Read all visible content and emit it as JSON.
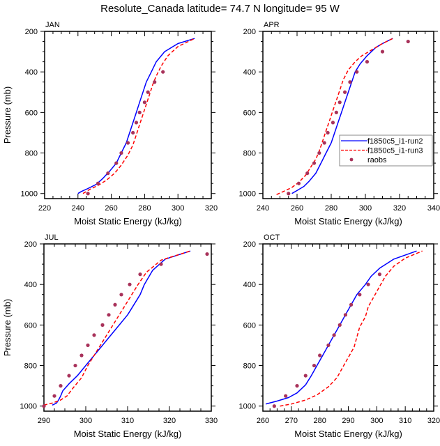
{
  "chart_data": {
    "type": "line",
    "title": "Resolute_Canada  latitude= 74.7 N longitude= 95 W",
    "legend": {
      "placement": "right-middle of APR panel",
      "entries": [
        {
          "name": "f1850c5_i1-run2",
          "style": "solid",
          "color": "#0000ff"
        },
        {
          "name": "f1850c5_i1-run3",
          "style": "dashed",
          "color": "#ff0000"
        },
        {
          "name": "raobs",
          "style": "marker",
          "color": "#a8325a"
        }
      ]
    },
    "panels": [
      {
        "label": "JAN",
        "xlabel": "Moist Static Energy (kJ/kg)",
        "ylabel": "Pressure (mb)",
        "xlim": [
          220,
          320
        ],
        "xticks": [
          220,
          240,
          260,
          280,
          300,
          320
        ],
        "ylim": [
          1025,
          200
        ],
        "yticks": [
          200,
          400,
          600,
          800,
          1000
        ],
        "show_ylabel": true,
        "show_legend": false,
        "series": [
          {
            "name": "f1850c5_i1-run2",
            "points": [
              [
                240,
                1000
              ],
              [
                242,
                990
              ],
              [
                246,
                975
              ],
              [
                251,
                955
              ],
              [
                255,
                925
              ],
              [
                259,
                890
              ],
              [
                263,
                850
              ],
              [
                266,
                800
              ],
              [
                269,
                750
              ],
              [
                271,
                700
              ],
              [
                273,
                650
              ],
              [
                275,
                600
              ],
              [
                277,
                550
              ],
              [
                279,
                500
              ],
              [
                281,
                450
              ],
              [
                284,
                400
              ],
              [
                287,
                350
              ],
              [
                292,
                300
              ],
              [
                300,
                260
              ],
              [
                310,
                235
              ]
            ]
          },
          {
            "name": "f1850c5_i1-run3",
            "points": [
              [
                243,
                1000
              ],
              [
                247,
                980
              ],
              [
                252,
                960
              ],
              [
                257,
                935
              ],
              [
                262,
                900
              ],
              [
                266,
                860
              ],
              [
                270,
                810
              ],
              [
                273,
                760
              ],
              [
                275,
                710
              ],
              [
                277,
                660
              ],
              [
                279,
                610
              ],
              [
                281,
                560
              ],
              [
                283,
                510
              ],
              [
                285,
                460
              ],
              [
                287,
                420
              ],
              [
                290,
                370
              ],
              [
                294,
                320
              ],
              [
                300,
                275
              ],
              [
                305,
                255
              ],
              [
                310,
                235
              ]
            ]
          },
          {
            "name": "raobs",
            "points": [
              [
                246,
                1000
              ],
              [
                252,
                950
              ],
              [
                258,
                900
              ],
              [
                263,
                850
              ],
              [
                266,
                800
              ],
              [
                270,
                750
              ],
              [
                273,
                700
              ],
              [
                275,
                650
              ],
              [
                277,
                600
              ],
              [
                280,
                550
              ],
              [
                282,
                500
              ],
              [
                286,
                450
              ],
              [
                291,
                400
              ]
            ]
          }
        ]
      },
      {
        "label": "APR",
        "xlabel": "Moist Static Energy (kJ/kg)",
        "ylabel": "",
        "xlim": [
          240,
          340
        ],
        "xticks": [
          240,
          260,
          280,
          300,
          320,
          340
        ],
        "ylim": [
          1025,
          200
        ],
        "yticks": [
          200,
          400,
          600,
          800,
          1000
        ],
        "show_ylabel": false,
        "show_legend": true,
        "series": [
          {
            "name": "f1850c5_i1-run2",
            "points": [
              [
                257,
                1000
              ],
              [
                260,
                985
              ],
              [
                264,
                965
              ],
              [
                267,
                940
              ],
              [
                271,
                900
              ],
              [
                274,
                850
              ],
              [
                277,
                800
              ],
              [
                280,
                750
              ],
              [
                282,
                700
              ],
              [
                284,
                650
              ],
              [
                286,
                600
              ],
              [
                288,
                550
              ],
              [
                290,
                500
              ],
              [
                292,
                450
              ],
              [
                294,
                400
              ],
              [
                297,
                360
              ],
              [
                301,
                320
              ],
              [
                306,
                280
              ],
              [
                310,
                260
              ],
              [
                316,
                235
              ]
            ]
          },
          {
            "name": "f1850c5_i1-run3",
            "points": [
              [
                248,
                1005
              ],
              [
                252,
                990
              ],
              [
                257,
                970
              ],
              [
                261,
                945
              ],
              [
                265,
                910
              ],
              [
                268,
                870
              ],
              [
                271,
                830
              ],
              [
                273,
                790
              ],
              [
                275,
                740
              ],
              [
                277,
                690
              ],
              [
                279,
                640
              ],
              [
                281,
                590
              ],
              [
                283,
                540
              ],
              [
                285,
                490
              ],
              [
                287,
                440
              ],
              [
                290,
                390
              ],
              [
                294,
                350
              ],
              [
                298,
                320
              ],
              [
                305,
                285
              ],
              [
                310,
                260
              ],
              [
                316,
                235
              ]
            ]
          },
          {
            "name": "raobs",
            "points": [
              [
                255,
                1000
              ],
              [
                261,
                950
              ],
              [
                266,
                900
              ],
              [
                270,
                850
              ],
              [
                273,
                800
              ],
              [
                276,
                750
              ],
              [
                278,
                700
              ],
              [
                281,
                650
              ],
              [
                283,
                600
              ],
              [
                285,
                550
              ],
              [
                288,
                500
              ],
              [
                291,
                450
              ],
              [
                295,
                400
              ],
              [
                301,
                350
              ],
              [
                310,
                300
              ],
              [
                325,
                250
              ]
            ]
          }
        ]
      },
      {
        "label": "JUL",
        "xlabel": "Moist Static Energy (kJ/kg)",
        "ylabel": "Pressure (mb)",
        "xlim": [
          290,
          330
        ],
        "xticks": [
          290,
          300,
          310,
          320,
          330
        ],
        "ylim": [
          1025,
          200
        ],
        "yticks": [
          200,
          400,
          600,
          800,
          1000
        ],
        "show_ylabel": true,
        "show_legend": false,
        "series": [
          {
            "name": "f1850c5_i1-run2",
            "points": [
              [
                292,
                995
              ],
              [
                293,
                985
              ],
              [
                293.5,
                970
              ],
              [
                294,
                950
              ],
              [
                294.5,
                925
              ],
              [
                296,
                890
              ],
              [
                298,
                850
              ],
              [
                300,
                800
              ],
              [
                302,
                750
              ],
              [
                304,
                700
              ],
              [
                306,
                650
              ],
              [
                308,
                600
              ],
              [
                310,
                550
              ],
              [
                311.5,
                500
              ],
              [
                313,
                450
              ],
              [
                314,
                400
              ],
              [
                316,
                330
              ],
              [
                319,
                275
              ],
              [
                325,
                235
              ]
            ]
          },
          {
            "name": "f1850c5_i1-run3",
            "points": [
              [
                290,
                995
              ],
              [
                292,
                985
              ],
              [
                294,
                970
              ],
              [
                295.5,
                950
              ],
              [
                297,
                910
              ],
              [
                299,
                860
              ],
              [
                300.5,
                800
              ],
              [
                302,
                750
              ],
              [
                303.5,
                700
              ],
              [
                305,
                650
              ],
              [
                306.5,
                600
              ],
              [
                308,
                550
              ],
              [
                309.5,
                500
              ],
              [
                311,
                450
              ],
              [
                312.5,
                400
              ],
              [
                314.5,
                340
              ],
              [
                318,
                280
              ],
              [
                325,
                235
              ]
            ]
          },
          {
            "name": "raobs",
            "points": [
              [
                290,
                1000
              ],
              [
                292.5,
                950
              ],
              [
                294,
                900
              ],
              [
                296,
                850
              ],
              [
                297.5,
                800
              ],
              [
                299,
                750
              ],
              [
                300.5,
                700
              ],
              [
                302,
                650
              ],
              [
                304,
                600
              ],
              [
                305.5,
                550
              ],
              [
                307,
                500
              ],
              [
                308.5,
                450
              ],
              [
                310.5,
                400
              ],
              [
                313,
                350
              ],
              [
                318,
                300
              ],
              [
                329,
                250
              ]
            ]
          }
        ]
      },
      {
        "label": "OCT",
        "xlabel": "Moist Static Energy (kJ/kg)",
        "ylabel": "",
        "xlim": [
          260,
          320
        ],
        "xticks": [
          260,
          270,
          280,
          290,
          300,
          310,
          320
        ],
        "ylim": [
          1025,
          200
        ],
        "yticks": [
          200,
          400,
          600,
          800,
          1000
        ],
        "show_ylabel": false,
        "show_legend": false,
        "series": [
          {
            "name": "f1850c5_i1-run2",
            "points": [
              [
                261,
                990
              ],
              [
                265,
                975
              ],
              [
                269,
                958
              ],
              [
                272,
                935
              ],
              [
                275,
                895
              ],
              [
                277,
                850
              ],
              [
                279,
                800
              ],
              [
                281,
                750
              ],
              [
                283,
                700
              ],
              [
                285,
                650
              ],
              [
                287,
                600
              ],
              [
                289,
                550
              ],
              [
                291,
                500
              ],
              [
                293,
                450
              ],
              [
                296,
                400
              ],
              [
                298,
                360
              ],
              [
                301,
                320
              ],
              [
                306,
                275
              ],
              [
                314,
                235
              ]
            ]
          },
          {
            "name": "f1850c5_i1-run3",
            "points": [
              [
                266,
                1000
              ],
              [
                270,
                990
              ],
              [
                275,
                970
              ],
              [
                279,
                945
              ],
              [
                283,
                905
              ],
              [
                286,
                860
              ],
              [
                288,
                810
              ],
              [
                290,
                760
              ],
              [
                292,
                710
              ],
              [
                293,
                660
              ],
              [
                294,
                610
              ],
              [
                296,
                560
              ],
              [
                297,
                510
              ],
              [
                299,
                460
              ],
              [
                301,
                410
              ],
              [
                303,
                360
              ],
              [
                306,
                310
              ],
              [
                310,
                270
              ],
              [
                316,
                235
              ]
            ]
          },
          {
            "name": "raobs",
            "points": [
              [
                264,
                1000
              ],
              [
                268,
                950
              ],
              [
                272,
                900
              ],
              [
                275,
                850
              ],
              [
                278,
                800
              ],
              [
                280,
                750
              ],
              [
                283,
                700
              ],
              [
                285,
                650
              ],
              [
                287,
                600
              ],
              [
                289,
                550
              ],
              [
                291,
                500
              ],
              [
                294,
                450
              ],
              [
                297,
                400
              ],
              [
                301,
                350
              ]
            ]
          }
        ]
      }
    ]
  }
}
